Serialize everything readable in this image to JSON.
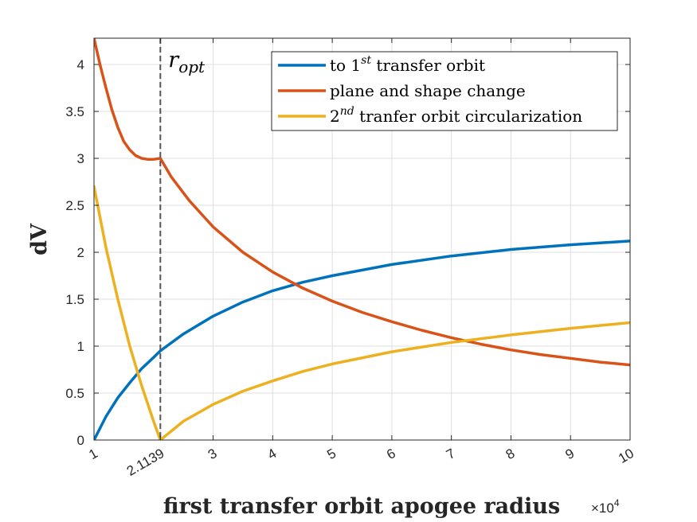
{
  "chart_data": {
    "type": "line",
    "xlabel": "first transfer orbit apogee radius",
    "ylabel": "dV",
    "x_multiplier": "×10",
    "x_multiplier_exp": "4",
    "xlim": [
      1,
      10
    ],
    "ylim": [
      0,
      4.28
    ],
    "grid": true,
    "legend_position": "top-right",
    "xticks": [
      1,
      2.1139,
      3,
      4,
      5,
      6,
      7,
      8,
      9,
      10
    ],
    "xtick_labels": [
      "1",
      "2.1139",
      "3",
      "4",
      "5",
      "6",
      "7",
      "8",
      "9",
      "10"
    ],
    "yticks": [
      0,
      0.5,
      1,
      1.5,
      2,
      2.5,
      3,
      3.5,
      4
    ],
    "ytick_labels": [
      "0",
      "0.5",
      "1",
      "1.5",
      "2",
      "2.5",
      "3",
      "3.5",
      "4"
    ],
    "annotation": {
      "x": 2.1139,
      "label_main": "r",
      "label_sub": "opt",
      "style": "dashed vertical line"
    },
    "series": [
      {
        "name": "to 1st transfer orbit",
        "legend_prefix": "to 1",
        "legend_sup": "st",
        "legend_suffix": " transfer orbit",
        "color": "#0072BD",
        "x": [
          1.0,
          1.2,
          1.4,
          1.6,
          1.8,
          2.0,
          2.1139,
          2.5,
          3.0,
          3.5,
          4.0,
          4.5,
          5.0,
          6.0,
          7.0,
          8.0,
          9.0,
          10.0
        ],
        "y": [
          0.0,
          0.25,
          0.45,
          0.61,
          0.76,
          0.88,
          0.95,
          1.13,
          1.32,
          1.47,
          1.59,
          1.68,
          1.75,
          1.87,
          1.96,
          2.03,
          2.08,
          2.12
        ]
      },
      {
        "name": "plane and shape change",
        "legend_prefix": "plane and shape change",
        "legend_sup": "",
        "legend_suffix": "",
        "color": "#D95319",
        "x": [
          1.0,
          1.1,
          1.2,
          1.3,
          1.4,
          1.5,
          1.6,
          1.7,
          1.8,
          1.9,
          2.0,
          2.1139,
          2.3,
          2.6,
          3.0,
          3.5,
          4.0,
          4.5,
          5.0,
          5.5,
          6.0,
          6.5,
          7.0,
          7.5,
          8.0,
          8.5,
          9.0,
          9.5,
          10.0
        ],
        "y": [
          4.28,
          4.0,
          3.75,
          3.52,
          3.33,
          3.18,
          3.09,
          3.03,
          3.0,
          2.99,
          2.99,
          3.0,
          2.8,
          2.55,
          2.27,
          2.0,
          1.79,
          1.62,
          1.48,
          1.36,
          1.26,
          1.17,
          1.09,
          1.02,
          0.96,
          0.91,
          0.87,
          0.83,
          0.8
        ]
      },
      {
        "name": "2nd tranfer orbit circularization",
        "legend_prefix": "2",
        "legend_sup": "nd",
        "legend_suffix": " tranfer orbit circularization",
        "color": "#EDB120",
        "x": [
          1.0,
          1.2,
          1.4,
          1.6,
          1.8,
          2.0,
          2.1139,
          2.5,
          3.0,
          3.5,
          4.0,
          4.5,
          5.0,
          6.0,
          7.0,
          8.0,
          9.0,
          10.0
        ],
        "y": [
          2.7,
          2.05,
          1.5,
          1.0,
          0.58,
          0.2,
          0.0,
          0.2,
          0.38,
          0.52,
          0.63,
          0.73,
          0.81,
          0.94,
          1.04,
          1.12,
          1.19,
          1.25
        ]
      }
    ]
  }
}
